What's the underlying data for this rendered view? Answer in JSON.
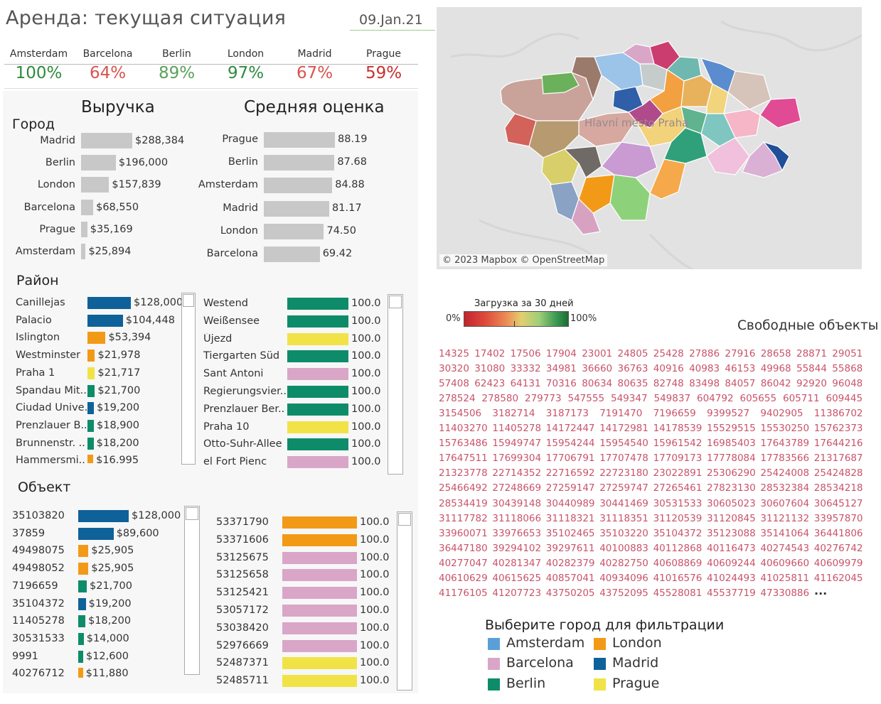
{
  "header": {
    "title": "Аренда: текущая ситуация",
    "date": "09.Jan.21"
  },
  "kpis": [
    {
      "city": "Amsterdam",
      "pct": "100%",
      "color": "#2e8b3e"
    },
    {
      "city": "Barcelona",
      "pct": "64%",
      "color": "#d9534f"
    },
    {
      "city": "Berlin",
      "pct": "89%",
      "color": "#5aa05a"
    },
    {
      "city": "London",
      "pct": "97%",
      "color": "#2e8b3e"
    },
    {
      "city": "Madrid",
      "pct": "67%",
      "color": "#d9534f"
    },
    {
      "city": "Prague",
      "pct": "59%",
      "color": "#c9302c"
    }
  ],
  "headings": {
    "revenue": "Выручка",
    "rating": "Средняя оценка",
    "city": "Город",
    "district": "Район",
    "object": "Объект"
  },
  "colors": {
    "Amsterdam": "#5a9fd8",
    "Barcelona": "#d9a6c8",
    "Berlin": "#0e8c6a",
    "London": "#f29a17",
    "Madrid": "#0e6199",
    "Prague": "#f1e347",
    "gray": "#c8c8c8"
  },
  "chart_data": [
    {
      "type": "bar",
      "title": "Выручка",
      "ylabel": "Город",
      "categories": [
        "Madrid",
        "Berlin",
        "London",
        "Barcelona",
        "Prague",
        "Amsterdam"
      ],
      "values": [
        288384,
        196000,
        157839,
        68550,
        35169,
        25894
      ],
      "labels": [
        "$288,384",
        "$196,000",
        "$157,839",
        "$68,550",
        "$35,169",
        "$25,894"
      ]
    },
    {
      "type": "bar",
      "title": "Средняя оценка",
      "categories": [
        "Prague",
        "Berlin",
        "Amsterdam",
        "Madrid",
        "London",
        "Barcelona"
      ],
      "values": [
        88.19,
        87.68,
        84.88,
        81.17,
        74.5,
        69.42
      ],
      "labels": [
        "88.19",
        "87.68",
        "84.88",
        "81.17",
        "74.50",
        "69.42"
      ]
    },
    {
      "type": "bar",
      "ylabel": "Район",
      "categories": [
        "Canillejas",
        "Palacio",
        "Islington",
        "Westminster",
        "Praha 1",
        "Spandau Mit..",
        "Ciudad Unive..",
        "Prenzlauer B..",
        "Brunnenstr. ..",
        "Hammersmi.."
      ],
      "values": [
        128000,
        104448,
        53394,
        21978,
        21717,
        21700,
        19200,
        18900,
        18200,
        16995
      ],
      "labels": [
        "$128,000",
        "$104,448",
        "$53,394",
        "$21,978",
        "$21,717",
        "$21,700",
        "$19,200",
        "$18,900",
        "$18,200",
        "$16,995"
      ],
      "cities": [
        "Madrid",
        "Madrid",
        "London",
        "London",
        "Prague",
        "Berlin",
        "Madrid",
        "Berlin",
        "Berlin",
        "London"
      ]
    },
    {
      "type": "bar",
      "categories": [
        "Westend",
        "Weißensee",
        "Újezd",
        "Tiergarten Süd",
        "Sant Antoni",
        "Regierungsvier..",
        "Prenzlauer Ber..",
        "Praha 10",
        "Otto-Suhr-Allee",
        "el Fort Pienc"
      ],
      "values": [
        100,
        100,
        100,
        100,
        100,
        100,
        100,
        100,
        100,
        100
      ],
      "labels": [
        "100.0",
        "100.0",
        "100.0",
        "100.0",
        "100.0",
        "100.0",
        "100.0",
        "100.0",
        "100.0",
        "100.0"
      ],
      "cities": [
        "Berlin",
        "Berlin",
        "Prague",
        "Berlin",
        "Barcelona",
        "Berlin",
        "Berlin",
        "Prague",
        "Berlin",
        "Barcelona"
      ]
    },
    {
      "type": "bar",
      "ylabel": "Объект",
      "categories": [
        "35103820",
        "37859",
        "49498075",
        "49498052",
        "7196659",
        "35104372",
        "11405278",
        "30531533",
        "9991",
        "40276712"
      ],
      "values": [
        128000,
        89600,
        25905,
        25905,
        21700,
        19200,
        18200,
        14000,
        12600,
        11880
      ],
      "labels": [
        "$128,000",
        "$89,600",
        "$25,905",
        "$25,905",
        "$21,700",
        "$19,200",
        "$18,200",
        "$14,000",
        "$12,600",
        "$11,880"
      ],
      "cities": [
        "Madrid",
        "Madrid",
        "London",
        "London",
        "Berlin",
        "Madrid",
        "Berlin",
        "Berlin",
        "Berlin",
        "London"
      ]
    },
    {
      "type": "bar",
      "categories": [
        "53371790",
        "53371606",
        "53125675",
        "53125658",
        "53125421",
        "53057172",
        "53038420",
        "52976669",
        "52487371",
        "52485711"
      ],
      "values": [
        100,
        100,
        100,
        100,
        100,
        100,
        100,
        100,
        100,
        100
      ],
      "labels": [
        "100.0",
        "100.0",
        "100.0",
        "100.0",
        "100.0",
        "100.0",
        "100.0",
        "100.0",
        "100.0",
        "100.0"
      ],
      "cities": [
        "London",
        "London",
        "Barcelona",
        "Barcelona",
        "Barcelona",
        "Barcelona",
        "Barcelona",
        "Barcelona",
        "Prague",
        "Prague"
      ]
    }
  ],
  "map": {
    "attribution": "© 2023 Mapbox © OpenStreetMap",
    "place_label": "Hlavní město Praha"
  },
  "occupancy_legend": {
    "title": "Загрузка за 30 дней",
    "min": "0%",
    "max": "100%"
  },
  "free_objects": {
    "title": "Свободные объекты",
    "ids": [
      "14325",
      "17402",
      "17506",
      "17904",
      "23001",
      "24805",
      "25428",
      "27886",
      "27916",
      "28658",
      "28871",
      "29051",
      "30320",
      "31080",
      "33332",
      "34981",
      "36660",
      "36763",
      "40916",
      "40983",
      "46153",
      "49968",
      "55844",
      "55868",
      "57408",
      "62423",
      "64131",
      "70316",
      "80634",
      "80635",
      "82748",
      "83498",
      "84057",
      "86042",
      "92920",
      "96048",
      "278524",
      "278580",
      "279773",
      "547555",
      "549347",
      "549837",
      "604792",
      "605655",
      "605711",
      "609445",
      "3154506",
      "3182714",
      "3187173",
      "7191470",
      "7196659",
      "9399527",
      "9402905",
      "11386702",
      "11403270",
      "11405278",
      "14172447",
      "14172981",
      "14178539",
      "15529515",
      "15530250",
      "15762373",
      "15763486",
      "15949747",
      "15954244",
      "15954540",
      "15961542",
      "16985403",
      "17643789",
      "17644216",
      "17647511",
      "17699304",
      "17706791",
      "17707478",
      "17709173",
      "17778084",
      "17783566",
      "21317687",
      "21323778",
      "22714352",
      "22716592",
      "22723180",
      "23022891",
      "25306290",
      "25424008",
      "25424828",
      "25466492",
      "27248669",
      "27259147",
      "27259747",
      "27265461",
      "27823130",
      "28532384",
      "28534218",
      "28534419",
      "30439148",
      "30440989",
      "30441469",
      "30531533",
      "30605023",
      "30607604",
      "30645127",
      "31117782",
      "31118066",
      "31118321",
      "31118351",
      "31120539",
      "31120845",
      "31121132",
      "33957870",
      "33960071",
      "33976653",
      "35102465",
      "35103220",
      "35104372",
      "35123088",
      "35141064",
      "36441806",
      "36447180",
      "39294102",
      "39297611",
      "40100883",
      "40112868",
      "40116473",
      "40274543",
      "40276742",
      "40277047",
      "40281347",
      "40282379",
      "40282750",
      "40608869",
      "40609244",
      "40609660",
      "40609979",
      "40610629",
      "40615625",
      "40857041",
      "40934096",
      "41016576",
      "41024493",
      "41025811",
      "41162045",
      "41176105",
      "41207723",
      "43750205",
      "43752095",
      "45528081",
      "45537719",
      "47330886"
    ],
    "more": "..."
  },
  "city_filter": {
    "title": "Выберите город для фильтрации",
    "items": [
      {
        "name": "Amsterdam",
        "color": "#5a9fd8"
      },
      {
        "name": "London",
        "color": "#f29a17"
      },
      {
        "name": "Barcelona",
        "color": "#d9a6c8"
      },
      {
        "name": "Madrid",
        "color": "#0e6199"
      },
      {
        "name": "Berlin",
        "color": "#0e8c6a"
      },
      {
        "name": "Prague",
        "color": "#f1e347"
      }
    ]
  }
}
